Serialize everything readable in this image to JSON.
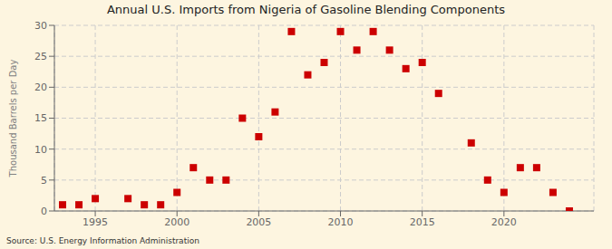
{
  "chart_data": {
    "type": "scatter",
    "title": "Annual U.S. Imports from Nigeria of Gasoline Blending Components",
    "ylabel": "Thousand Barrels per Day",
    "annotations": [
      "Source: U.S. Energy Information Administration"
    ],
    "x": [
      1993,
      1994,
      1995,
      1997,
      1998,
      1999,
      2000,
      2001,
      2002,
      2003,
      2004,
      2005,
      2006,
      2007,
      2008,
      2009,
      2010,
      2011,
      2012,
      2013,
      2014,
      2015,
      2016,
      2018,
      2019,
      2020,
      2021,
      2022,
      2023,
      2024
    ],
    "values": [
      1,
      1,
      2,
      2,
      1,
      1,
      3,
      7,
      5,
      5,
      15,
      12,
      16,
      29,
      22,
      24,
      29,
      26,
      29,
      26,
      23,
      24,
      19,
      11,
      5,
      3,
      7,
      7,
      3,
      0
    ],
    "color": "#cc0000",
    "marker": "square",
    "xlim": [
      1992.5,
      2025.5
    ],
    "ylim": [
      0,
      30
    ],
    "xticks": [
      1995,
      2000,
      2005,
      2010,
      2015,
      2020
    ],
    "yticks": [
      0,
      5,
      10,
      15,
      20,
      25,
      30
    ],
    "grid": true
  }
}
